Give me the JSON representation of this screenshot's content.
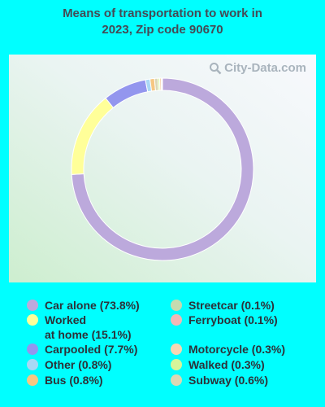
{
  "title_lines": [
    "Means of transportation to work in",
    "2023, Zip code 90670"
  ],
  "watermark": "City-Data.com",
  "chart_data": {
    "type": "pie",
    "donut": true,
    "title": "Means of transportation to work in 2023, Zip code 90670",
    "slices": [
      {
        "label": "Car alone (73.8%)",
        "value": 73.8,
        "color": "#bca9dc"
      },
      {
        "label": "Worked at home (15.1%)",
        "value": 15.1,
        "color": "#ffff99"
      },
      {
        "label": "Carpooled (7.7%)",
        "value": 7.7,
        "color": "#9396ee"
      },
      {
        "label": "Other (0.8%)",
        "value": 0.8,
        "color": "#a9d8f5"
      },
      {
        "label": "Bus (0.8%)",
        "value": 0.8,
        "color": "#f6c782"
      },
      {
        "label": "Streetcar (0.1%)",
        "value": 0.1,
        "color": "#c4dbb0"
      },
      {
        "label": "Ferryboat (0.1%)",
        "value": 0.1,
        "color": "#f2b8b6"
      },
      {
        "label": "Motorcycle (0.3%)",
        "value": 0.3,
        "color": "#f7d7b3"
      },
      {
        "label": "Walked (0.3%)",
        "value": 0.3,
        "color": "#d6f59a"
      },
      {
        "label": "Subway (0.6%)",
        "value": 0.6,
        "color": "#dbd8b5"
      }
    ],
    "legend_placement": "bottom"
  },
  "legend": [
    {
      "lines": [
        "Car alone (73.8%)"
      ],
      "color": "#bca9dc"
    },
    {
      "lines": [
        "Worked",
        "at home (15.1%)"
      ],
      "color": "#ffff99"
    },
    {
      "lines": [
        "Carpooled (7.7%)"
      ],
      "color": "#9396ee"
    },
    {
      "lines": [
        "Other (0.8%)"
      ],
      "color": "#a9d8f5"
    },
    {
      "lines": [
        "Bus (0.8%)"
      ],
      "color": "#f6c782"
    },
    {
      "lines": [
        "Streetcar (0.1%)"
      ],
      "color": "#c4dbb0"
    },
    {
      "lines": [
        "Ferryboat (0.1%)"
      ],
      "color": "#f2b8b6"
    },
    {
      "lines": [
        "Motorcycle (0.3%)"
      ],
      "color": "#f7d7b3"
    },
    {
      "lines": [
        "Walked (0.3%)"
      ],
      "color": "#d6f59a"
    },
    {
      "lines": [
        "Subway (0.6%)"
      ],
      "color": "#dbd8b5"
    }
  ]
}
